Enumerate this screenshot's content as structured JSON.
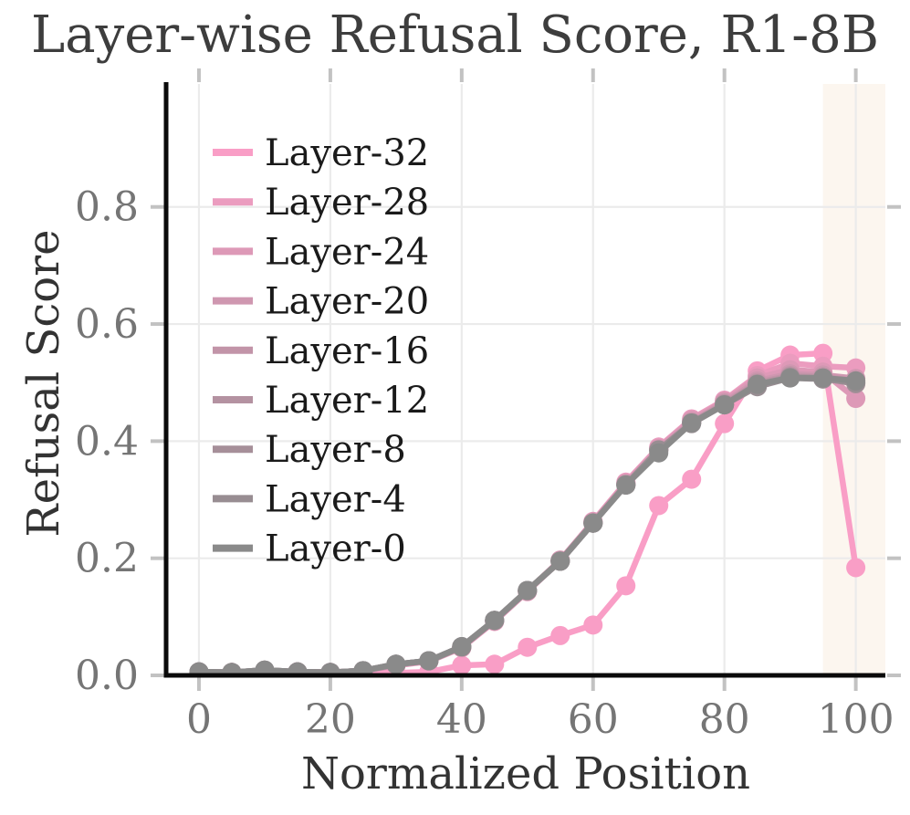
{
  "figure": {
    "title": "Layer-wise Refusal Score, R1-8B",
    "xlabel": "Normalized Position",
    "ylabel": "Refusal Score"
  },
  "chart_data": {
    "type": "line",
    "title": "Layer-wise Refusal Score, R1-8B",
    "xlabel": "Normalized Position",
    "ylabel": "Refusal Score",
    "xlim": [
      -5,
      104.5
    ],
    "ylim": [
      0,
      1.01
    ],
    "xticks": [
      0,
      20,
      40,
      60,
      80,
      100
    ],
    "xtick_labels": [
      "0",
      "20",
      "40",
      "60",
      "80",
      "100"
    ],
    "yticks": [
      0.0,
      0.2,
      0.4,
      0.6,
      0.8
    ],
    "ytick_labels": [
      "0.0",
      "0.2",
      "0.4",
      "0.6",
      "0.8"
    ],
    "grid": true,
    "legend_position": "upper left",
    "highlight_span": {
      "x0": 95,
      "x1": 104.5,
      "color": "#FCF6EF"
    },
    "x": [
      0,
      5,
      10,
      15,
      20,
      25,
      30,
      35,
      40,
      45,
      50,
      55,
      60,
      65,
      70,
      75,
      80,
      85,
      90,
      95,
      100
    ],
    "series": [
      {
        "name": "Layer-32",
        "color": "#F99EC6",
        "values": [
          0.003,
          0.004,
          0.007,
          0.006,
          0.004,
          0.005,
          0.004,
          0.006,
          0.017,
          0.019,
          0.048,
          0.068,
          0.086,
          0.153,
          0.29,
          0.335,
          0.43,
          0.52,
          0.547,
          0.55,
          0.184
        ]
      },
      {
        "name": "Layer-28",
        "color": "#EB9CBF",
        "values": [
          0.005,
          0.005,
          0.008,
          0.006,
          0.005,
          0.007,
          0.017,
          0.024,
          0.047,
          0.092,
          0.143,
          0.196,
          0.263,
          0.33,
          0.39,
          0.438,
          0.47,
          0.512,
          0.533,
          0.528,
          0.525
        ]
      },
      {
        "name": "Layer-24",
        "color": "#DD99B7",
        "values": [
          0.005,
          0.005,
          0.008,
          0.006,
          0.005,
          0.007,
          0.018,
          0.024,
          0.048,
          0.093,
          0.144,
          0.197,
          0.262,
          0.328,
          0.388,
          0.436,
          0.468,
          0.508,
          0.522,
          0.518,
          0.473
        ]
      },
      {
        "name": "Layer-20",
        "color": "#CF97B0",
        "values": [
          0.006,
          0.005,
          0.008,
          0.006,
          0.005,
          0.008,
          0.018,
          0.025,
          0.048,
          0.093,
          0.144,
          0.196,
          0.261,
          0.327,
          0.386,
          0.433,
          0.466,
          0.503,
          0.515,
          0.513,
          0.507
        ]
      },
      {
        "name": "Layer-16",
        "color": "#C294A8",
        "values": [
          0.006,
          0.005,
          0.008,
          0.006,
          0.005,
          0.008,
          0.018,
          0.025,
          0.048,
          0.094,
          0.144,
          0.195,
          0.261,
          0.326,
          0.385,
          0.432,
          0.464,
          0.5,
          0.512,
          0.51,
          0.503
        ]
      },
      {
        "name": "Layer-12",
        "color": "#B492A1",
        "values": [
          0.006,
          0.005,
          0.009,
          0.006,
          0.005,
          0.008,
          0.019,
          0.025,
          0.049,
          0.094,
          0.145,
          0.195,
          0.26,
          0.326,
          0.385,
          0.431,
          0.463,
          0.498,
          0.51,
          0.508,
          0.5
        ]
      },
      {
        "name": "Layer-8",
        "color": "#A68F99",
        "values": [
          0.006,
          0.005,
          0.009,
          0.006,
          0.005,
          0.008,
          0.019,
          0.025,
          0.049,
          0.094,
          0.145,
          0.195,
          0.26,
          0.325,
          0.384,
          0.431,
          0.462,
          0.496,
          0.509,
          0.507,
          0.498
        ]
      },
      {
        "name": "Layer-4",
        "color": "#988D92",
        "values": [
          0.006,
          0.005,
          0.009,
          0.006,
          0.005,
          0.008,
          0.019,
          0.025,
          0.049,
          0.094,
          0.145,
          0.195,
          0.26,
          0.325,
          0.385,
          0.43,
          0.462,
          0.493,
          0.508,
          0.506,
          0.5
        ]
      },
      {
        "name": "Layer-0",
        "color": "#8A8A8A",
        "values": [
          0.006,
          0.005,
          0.009,
          0.006,
          0.005,
          0.008,
          0.019,
          0.025,
          0.049,
          0.094,
          0.145,
          0.195,
          0.26,
          0.325,
          0.38,
          0.431,
          0.462,
          0.497,
          0.508,
          0.508,
          0.503
        ]
      }
    ],
    "style_colors": {
      "grid": "#EBEBEB",
      "tick_mark": "#C2C2C2",
      "tick_label": "#757575",
      "spine": "#0a0a0a",
      "title_color": "#3d3d3d",
      "axis_label_color": "#333333",
      "legend_text": "#1a1a1a",
      "background": "#ffffff"
    }
  }
}
